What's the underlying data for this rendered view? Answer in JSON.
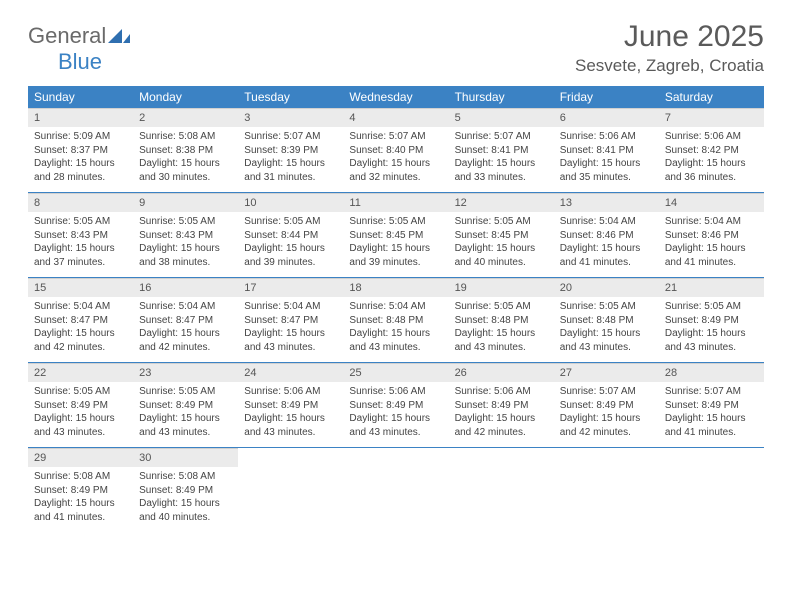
{
  "brand": {
    "general": "General",
    "blue": "Blue"
  },
  "title": "June 2025",
  "location": "Sesvete, Zagreb, Croatia",
  "colors": {
    "header_bg": "#3b82c4",
    "header_text": "#ffffff",
    "daynum_bg": "#ebebeb",
    "rule": "#3b82c4",
    "logo_gray": "#6a6a6a",
    "logo_blue": "#3b82c4"
  },
  "day_labels": [
    "Sunday",
    "Monday",
    "Tuesday",
    "Wednesday",
    "Thursday",
    "Friday",
    "Saturday"
  ],
  "weeks": [
    [
      {
        "n": "1",
        "sr": "Sunrise: 5:09 AM",
        "ss": "Sunset: 8:37 PM",
        "d1": "Daylight: 15 hours",
        "d2": "and 28 minutes."
      },
      {
        "n": "2",
        "sr": "Sunrise: 5:08 AM",
        "ss": "Sunset: 8:38 PM",
        "d1": "Daylight: 15 hours",
        "d2": "and 30 minutes."
      },
      {
        "n": "3",
        "sr": "Sunrise: 5:07 AM",
        "ss": "Sunset: 8:39 PM",
        "d1": "Daylight: 15 hours",
        "d2": "and 31 minutes."
      },
      {
        "n": "4",
        "sr": "Sunrise: 5:07 AM",
        "ss": "Sunset: 8:40 PM",
        "d1": "Daylight: 15 hours",
        "d2": "and 32 minutes."
      },
      {
        "n": "5",
        "sr": "Sunrise: 5:07 AM",
        "ss": "Sunset: 8:41 PM",
        "d1": "Daylight: 15 hours",
        "d2": "and 33 minutes."
      },
      {
        "n": "6",
        "sr": "Sunrise: 5:06 AM",
        "ss": "Sunset: 8:41 PM",
        "d1": "Daylight: 15 hours",
        "d2": "and 35 minutes."
      },
      {
        "n": "7",
        "sr": "Sunrise: 5:06 AM",
        "ss": "Sunset: 8:42 PM",
        "d1": "Daylight: 15 hours",
        "d2": "and 36 minutes."
      }
    ],
    [
      {
        "n": "8",
        "sr": "Sunrise: 5:05 AM",
        "ss": "Sunset: 8:43 PM",
        "d1": "Daylight: 15 hours",
        "d2": "and 37 minutes."
      },
      {
        "n": "9",
        "sr": "Sunrise: 5:05 AM",
        "ss": "Sunset: 8:43 PM",
        "d1": "Daylight: 15 hours",
        "d2": "and 38 minutes."
      },
      {
        "n": "10",
        "sr": "Sunrise: 5:05 AM",
        "ss": "Sunset: 8:44 PM",
        "d1": "Daylight: 15 hours",
        "d2": "and 39 minutes."
      },
      {
        "n": "11",
        "sr": "Sunrise: 5:05 AM",
        "ss": "Sunset: 8:45 PM",
        "d1": "Daylight: 15 hours",
        "d2": "and 39 minutes."
      },
      {
        "n": "12",
        "sr": "Sunrise: 5:05 AM",
        "ss": "Sunset: 8:45 PM",
        "d1": "Daylight: 15 hours",
        "d2": "and 40 minutes."
      },
      {
        "n": "13",
        "sr": "Sunrise: 5:04 AM",
        "ss": "Sunset: 8:46 PM",
        "d1": "Daylight: 15 hours",
        "d2": "and 41 minutes."
      },
      {
        "n": "14",
        "sr": "Sunrise: 5:04 AM",
        "ss": "Sunset: 8:46 PM",
        "d1": "Daylight: 15 hours",
        "d2": "and 41 minutes."
      }
    ],
    [
      {
        "n": "15",
        "sr": "Sunrise: 5:04 AM",
        "ss": "Sunset: 8:47 PM",
        "d1": "Daylight: 15 hours",
        "d2": "and 42 minutes."
      },
      {
        "n": "16",
        "sr": "Sunrise: 5:04 AM",
        "ss": "Sunset: 8:47 PM",
        "d1": "Daylight: 15 hours",
        "d2": "and 42 minutes."
      },
      {
        "n": "17",
        "sr": "Sunrise: 5:04 AM",
        "ss": "Sunset: 8:47 PM",
        "d1": "Daylight: 15 hours",
        "d2": "and 43 minutes."
      },
      {
        "n": "18",
        "sr": "Sunrise: 5:04 AM",
        "ss": "Sunset: 8:48 PM",
        "d1": "Daylight: 15 hours",
        "d2": "and 43 minutes."
      },
      {
        "n": "19",
        "sr": "Sunrise: 5:05 AM",
        "ss": "Sunset: 8:48 PM",
        "d1": "Daylight: 15 hours",
        "d2": "and 43 minutes."
      },
      {
        "n": "20",
        "sr": "Sunrise: 5:05 AM",
        "ss": "Sunset: 8:48 PM",
        "d1": "Daylight: 15 hours",
        "d2": "and 43 minutes."
      },
      {
        "n": "21",
        "sr": "Sunrise: 5:05 AM",
        "ss": "Sunset: 8:49 PM",
        "d1": "Daylight: 15 hours",
        "d2": "and 43 minutes."
      }
    ],
    [
      {
        "n": "22",
        "sr": "Sunrise: 5:05 AM",
        "ss": "Sunset: 8:49 PM",
        "d1": "Daylight: 15 hours",
        "d2": "and 43 minutes."
      },
      {
        "n": "23",
        "sr": "Sunrise: 5:05 AM",
        "ss": "Sunset: 8:49 PM",
        "d1": "Daylight: 15 hours",
        "d2": "and 43 minutes."
      },
      {
        "n": "24",
        "sr": "Sunrise: 5:06 AM",
        "ss": "Sunset: 8:49 PM",
        "d1": "Daylight: 15 hours",
        "d2": "and 43 minutes."
      },
      {
        "n": "25",
        "sr": "Sunrise: 5:06 AM",
        "ss": "Sunset: 8:49 PM",
        "d1": "Daylight: 15 hours",
        "d2": "and 43 minutes."
      },
      {
        "n": "26",
        "sr": "Sunrise: 5:06 AM",
        "ss": "Sunset: 8:49 PM",
        "d1": "Daylight: 15 hours",
        "d2": "and 42 minutes."
      },
      {
        "n": "27",
        "sr": "Sunrise: 5:07 AM",
        "ss": "Sunset: 8:49 PM",
        "d1": "Daylight: 15 hours",
        "d2": "and 42 minutes."
      },
      {
        "n": "28",
        "sr": "Sunrise: 5:07 AM",
        "ss": "Sunset: 8:49 PM",
        "d1": "Daylight: 15 hours",
        "d2": "and 41 minutes."
      }
    ],
    [
      {
        "n": "29",
        "sr": "Sunrise: 5:08 AM",
        "ss": "Sunset: 8:49 PM",
        "d1": "Daylight: 15 hours",
        "d2": "and 41 minutes."
      },
      {
        "n": "30",
        "sr": "Sunrise: 5:08 AM",
        "ss": "Sunset: 8:49 PM",
        "d1": "Daylight: 15 hours",
        "d2": "and 40 minutes."
      },
      null,
      null,
      null,
      null,
      null
    ]
  ]
}
